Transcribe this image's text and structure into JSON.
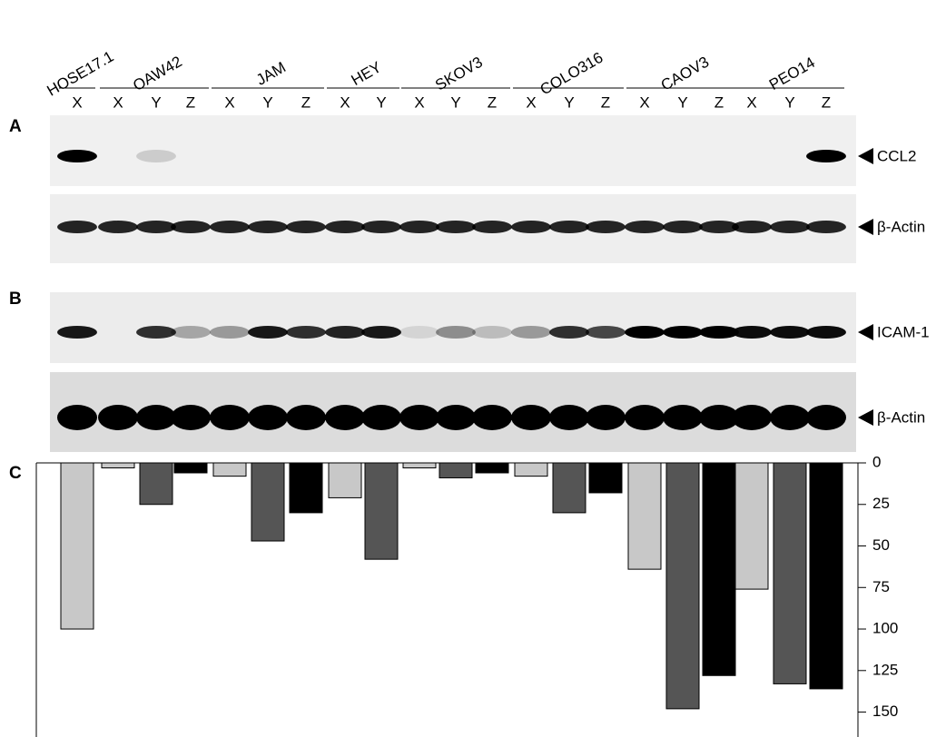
{
  "panels": [
    "A",
    "B",
    "C"
  ],
  "lanes": [
    [
      "X"
    ],
    [
      "X",
      "Y",
      "Z"
    ],
    [
      "X",
      "Y",
      "Z"
    ],
    [
      "X",
      "Y"
    ],
    [
      "X",
      "Y",
      "Z"
    ],
    [
      "X",
      "Y",
      "Z"
    ],
    [
      "X",
      "Y",
      "Z"
    ],
    [
      "X",
      "Y",
      "Z"
    ]
  ],
  "band_labels": [
    "CCL2",
    "β-Actin",
    "ICAM-1",
    "β-Actin"
  ],
  "chart_data": {
    "type": "bar",
    "categories": [
      "HOSE17.1",
      "OAW42",
      "JAM",
      "HEY",
      "SKOV3",
      "COLO316",
      "CAOV3",
      "PEO14"
    ],
    "series": [
      {
        "color": "#c8c8c8",
        "values": [
          100,
          3,
          8,
          21,
          3,
          8,
          64,
          76
        ]
      },
      {
        "color": "#555555",
        "values": [
          null,
          25,
          47,
          58,
          9,
          30,
          148,
          133
        ]
      },
      {
        "color": "#000000",
        "values": [
          null,
          6,
          30,
          null,
          6,
          18,
          128,
          136
        ]
      }
    ],
    "ylim": [
      0,
      165
    ],
    "y_inverted": true,
    "yticks": [
      0,
      25,
      50,
      75,
      100,
      125,
      150
    ]
  }
}
